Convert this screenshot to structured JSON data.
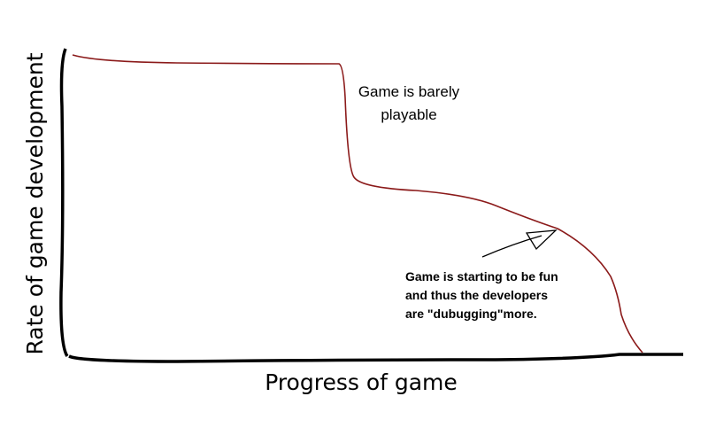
{
  "chart_data": {
    "type": "line",
    "x_label": "Progress of game",
    "y_label": "Rate of game development",
    "annotations": [
      {
        "lines": [
          "Game is barely",
          "playable"
        ]
      },
      {
        "lines": [
          "Game is starting to be fun",
          "and thus the developers",
          "are \"dubugging\"more."
        ]
      }
    ],
    "color": "#8b1a1a"
  }
}
